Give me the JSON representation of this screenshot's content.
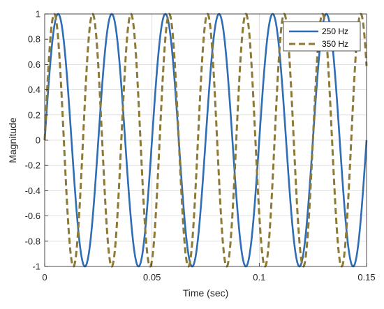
{
  "chart_data": {
    "type": "line",
    "title": "",
    "xlabel": "Time (sec)",
    "ylabel": "Magnitude",
    "xlim": [
      0,
      0.15
    ],
    "ylim": [
      -1,
      1
    ],
    "x_ticks": [
      0,
      0.05,
      0.1,
      0.15
    ],
    "x_tick_labels": [
      "0",
      "0.05",
      "0.1",
      "0.15"
    ],
    "y_ticks": [
      -1,
      -0.8,
      -0.6,
      -0.4,
      -0.2,
      0,
      0.2,
      0.4,
      0.6,
      0.8,
      1
    ],
    "y_tick_labels": [
      "-1",
      "-0.8",
      "-0.6",
      "-0.4",
      "-0.2",
      "0",
      "0.2",
      "0.4",
      "0.6",
      "0.8",
      "1"
    ],
    "grid": true,
    "legend_position": "top-right",
    "series": [
      {
        "name": "250 Hz",
        "function": "sin(2*pi*f*t)",
        "frequency_hz": 250,
        "display_frequency": 40,
        "color": "#2f6db5",
        "style": "solid"
      },
      {
        "name": "350 Hz",
        "function": "sin(2*pi*f*t)",
        "frequency_hz": 350,
        "display_frequency": 56,
        "color": "#8c7a36",
        "style": "dashed"
      }
    ]
  }
}
